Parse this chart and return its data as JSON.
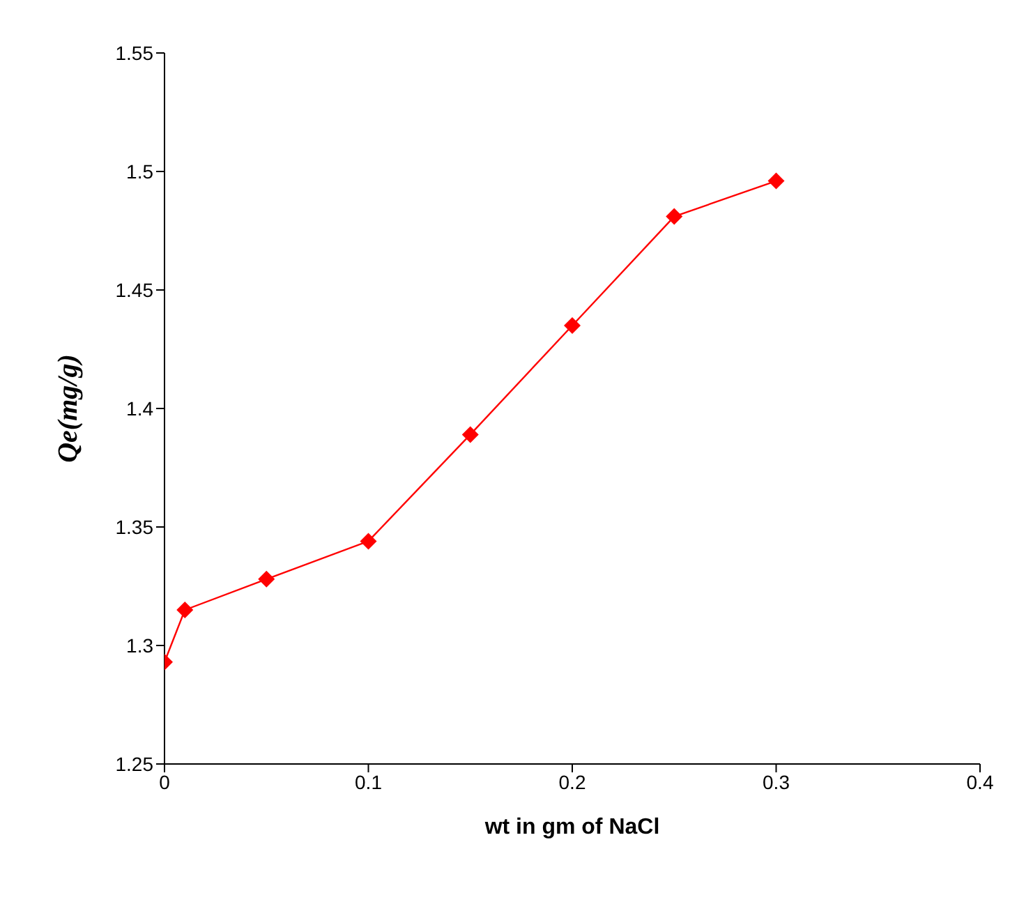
{
  "chart_data": {
    "type": "line",
    "xlabel": "wt in gm of NaCl",
    "ylabel": "Qe(mg/g)",
    "x": [
      0,
      0.01,
      0.05,
      0.1,
      0.15,
      0.2,
      0.25,
      0.3
    ],
    "series": [
      {
        "color": "#ff0000",
        "values": [
          1.293,
          1.315,
          1.328,
          1.344,
          1.389,
          1.435,
          1.481,
          1.496
        ]
      }
    ],
    "xlim": [
      0,
      0.4
    ],
    "xticks": [
      0,
      0.1,
      0.2,
      0.3,
      0.4
    ],
    "ylim": [
      1.25,
      1.55
    ],
    "yticks": [
      1.25,
      1.3,
      1.35,
      1.4,
      1.45,
      1.5,
      1.55
    ],
    "grid": false,
    "legend": false,
    "marker": "diamond",
    "line_style": "solid"
  }
}
